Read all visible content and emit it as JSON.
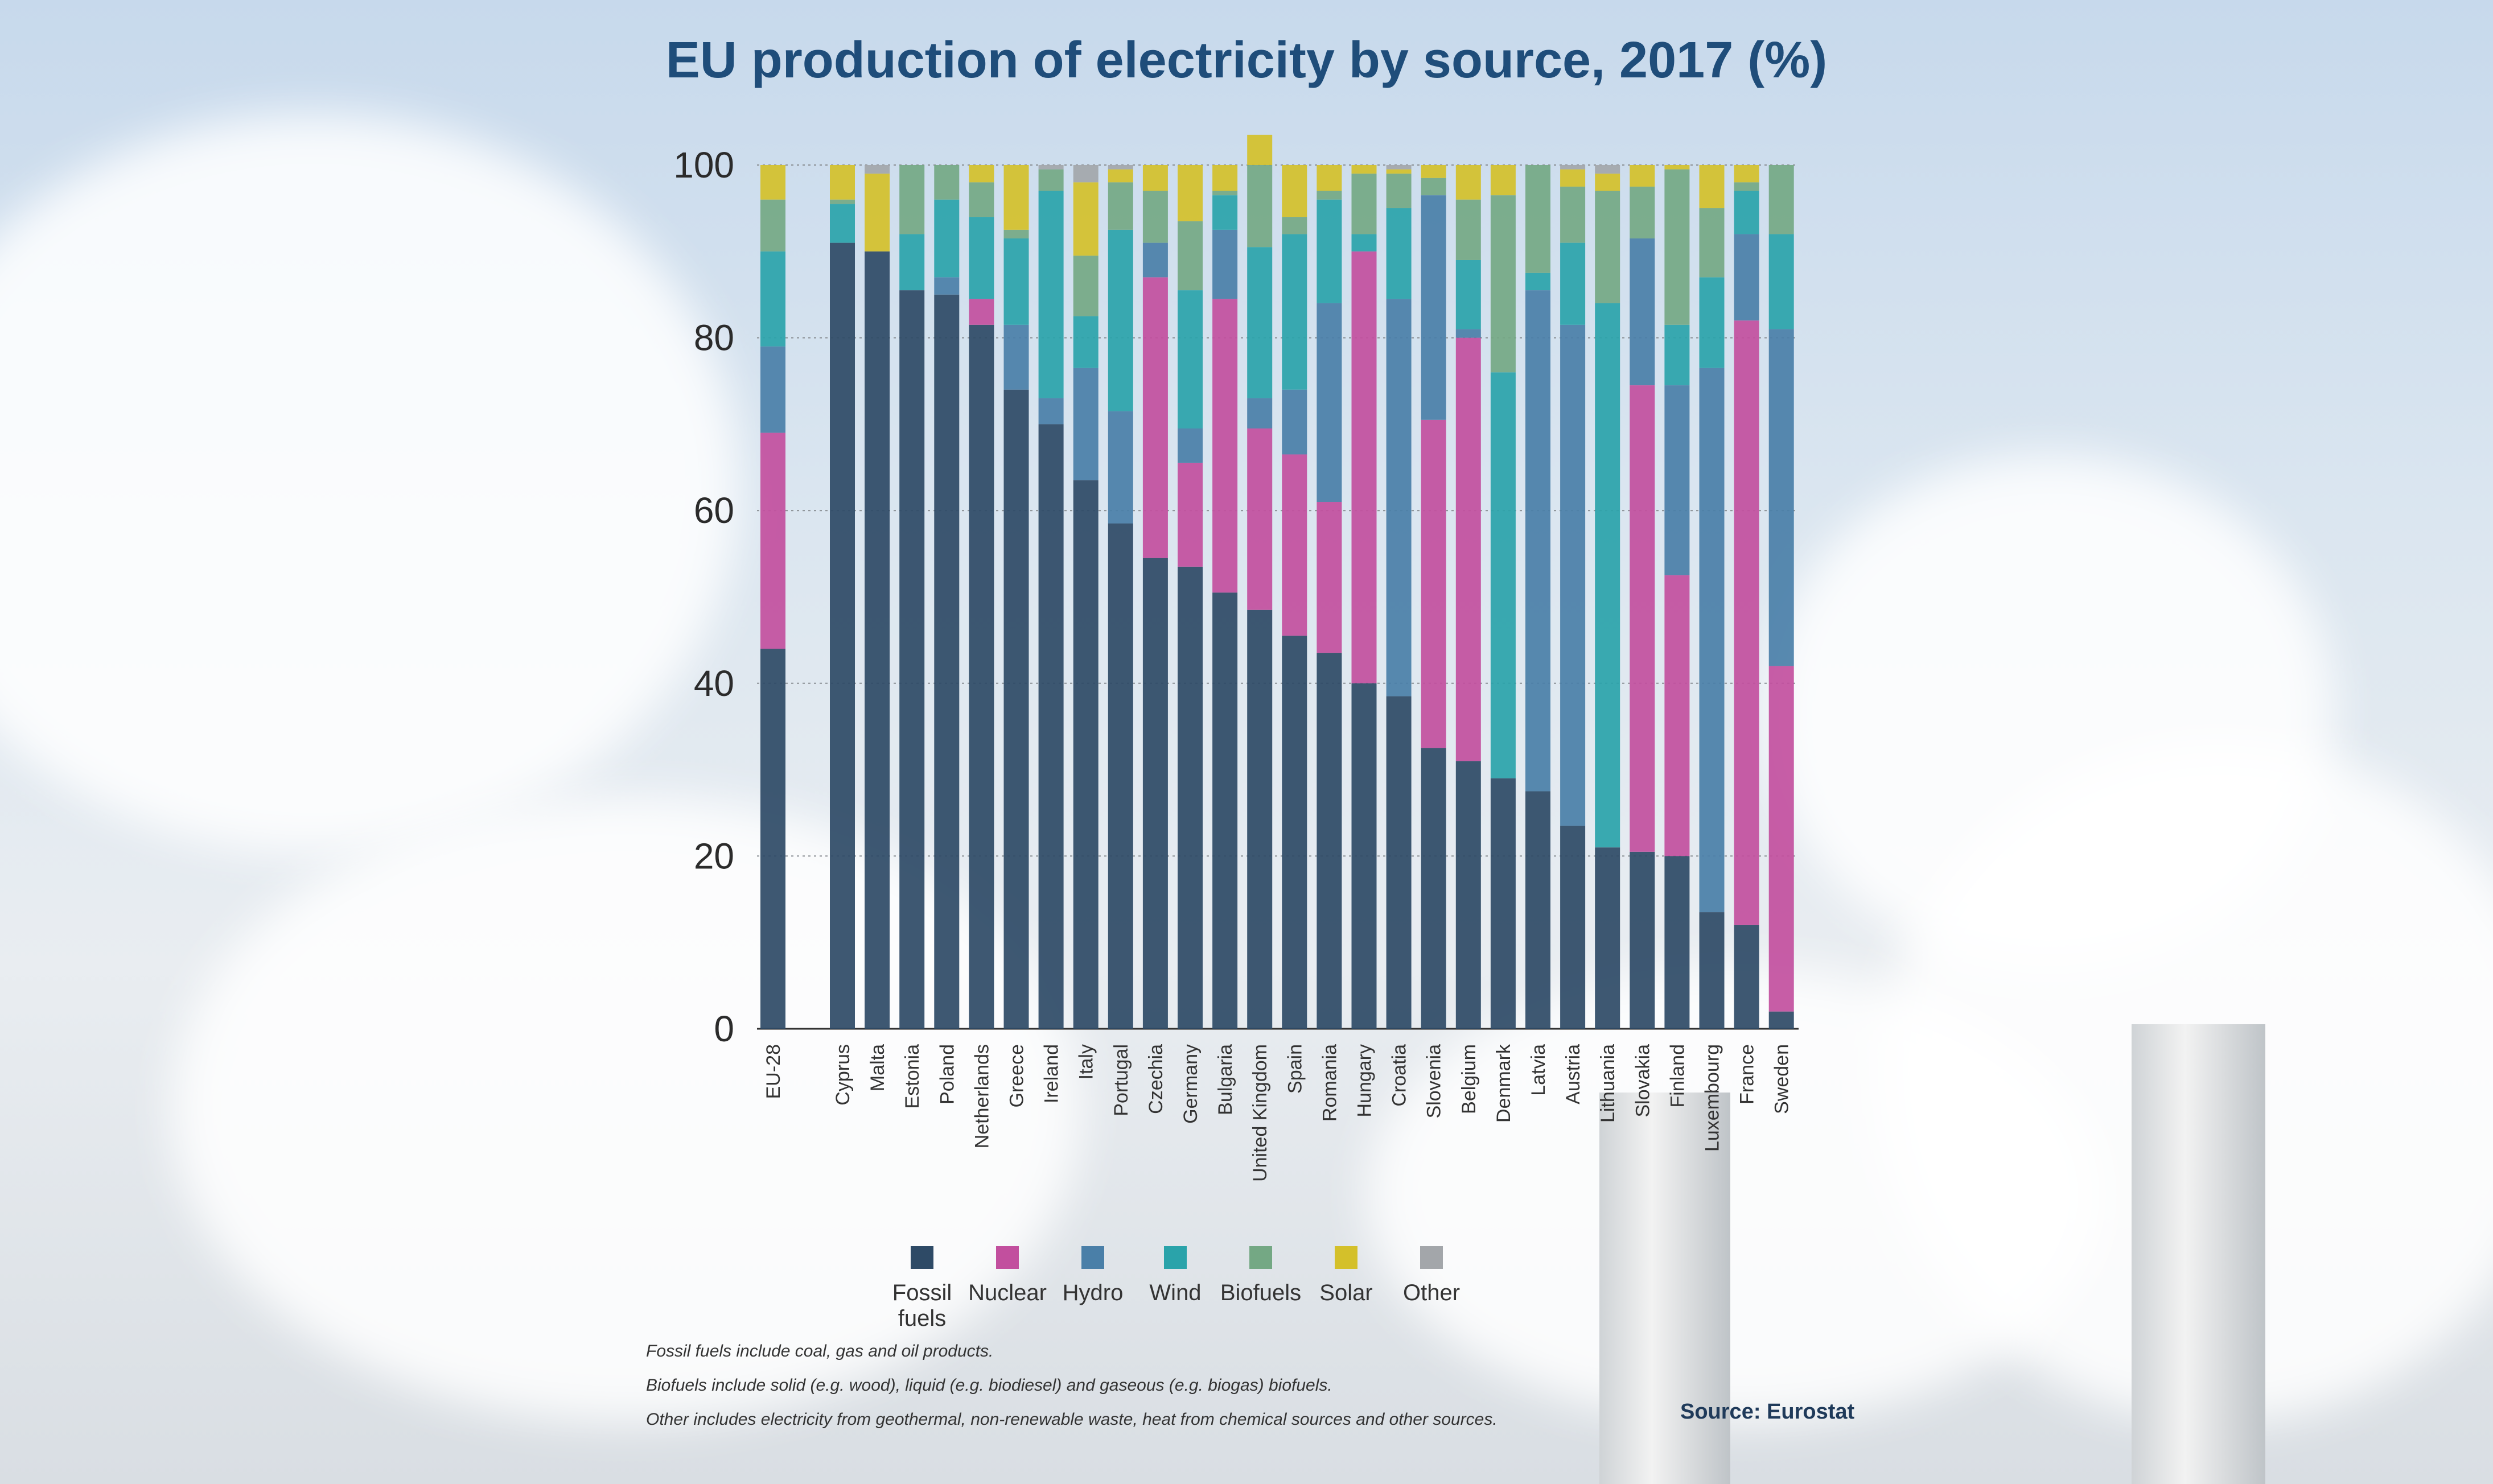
{
  "title": "EU production of electricity by source, 2017 (%)",
  "chart_data": {
    "type": "bar",
    "stacked": true,
    "ylim": [
      0,
      100
    ],
    "yticks": [
      0,
      20,
      40,
      60,
      80,
      100
    ],
    "categories": [
      "EU-28",
      "Cyprus",
      "Malta",
      "Estonia",
      "Poland",
      "Netherlands",
      "Greece",
      "Ireland",
      "Italy",
      "Portugal",
      "Czechia",
      "Germany",
      "Bulgaria",
      "United Kingdom",
      "Spain",
      "Romania",
      "Hungary",
      "Croatia",
      "Slovenia",
      "Belgium",
      "Denmark",
      "Latvia",
      "Austria",
      "Lithuania",
      "Slovakia",
      "Finland",
      "Luxembourg",
      "France",
      "Sweden"
    ],
    "series": [
      {
        "name": "Fossil fuels",
        "color": "#2e4a66",
        "values": [
          44,
          91,
          90,
          85.5,
          85,
          81.5,
          74,
          70,
          63.5,
          58.5,
          54.5,
          53.5,
          50.5,
          48.5,
          45.5,
          43.5,
          40,
          38.5,
          32.5,
          31,
          29,
          27.5,
          23.5,
          21,
          20.5,
          20,
          13.5,
          12,
          2
        ]
      },
      {
        "name": "Nuclear",
        "color": "#c24f9e",
        "values": [
          25,
          0,
          0,
          0,
          0,
          3,
          0,
          0,
          0,
          0,
          32.5,
          12,
          34,
          21,
          21,
          17.5,
          50,
          0,
          38,
          49,
          0,
          0,
          0,
          0,
          54,
          32.5,
          0,
          70,
          40
        ]
      },
      {
        "name": "Hydro",
        "color": "#4a7fa8",
        "values": [
          10,
          0,
          0,
          0,
          2,
          0,
          7.5,
          3,
          13,
          13,
          4,
          4,
          8,
          3.5,
          7.5,
          23,
          0,
          46,
          26,
          1,
          0,
          58,
          58,
          0,
          17,
          22,
          63,
          10,
          39
        ]
      },
      {
        "name": "Wind",
        "color": "#2aa3aa",
        "values": [
          11,
          4.5,
          0,
          6.5,
          9,
          9.5,
          10,
          24,
          6,
          21,
          0,
          16,
          4,
          17.5,
          18,
          12,
          2,
          10.5,
          0,
          8,
          47,
          2,
          9.5,
          63,
          0,
          7,
          10.5,
          5,
          11
        ]
      },
      {
        "name": "Biofuels",
        "color": "#74a884",
        "values": [
          6,
          0.5,
          0,
          8,
          4,
          4,
          1,
          2.5,
          7,
          5.5,
          6,
          8,
          0.5,
          9.5,
          2,
          1,
          7,
          4,
          2,
          7,
          20.5,
          12.5,
          6.5,
          13,
          6,
          18,
          8,
          1,
          8
        ]
      },
      {
        "name": "Solar",
        "color": "#d4c02a",
        "values": [
          4,
          4,
          9,
          0,
          0,
          2,
          7.5,
          0,
          8.5,
          1.5,
          3,
          6.5,
          3,
          3.5,
          6,
          3,
          1,
          0.5,
          1.5,
          4,
          3.5,
          0,
          2,
          2,
          2.5,
          0.5,
          5,
          2,
          0
        ]
      },
      {
        "name": "Other",
        "color": "#a3a6aa",
        "values": [
          0,
          0,
          1,
          0,
          0,
          0,
          0,
          0.5,
          2,
          0.5,
          0,
          0,
          0,
          0,
          0,
          0,
          0,
          0.5,
          0,
          0,
          0,
          0,
          0.5,
          1,
          0,
          0,
          0,
          0,
          0
        ]
      }
    ]
  },
  "notes": [
    "Fossil fuels include coal, gas and oil products.",
    "Biofuels include solid (e.g. wood), liquid (e.g. biodiesel) and gaseous (e.g. biogas) biofuels.",
    "Other includes electricity from geothermal, non-renewable waste, heat from chemical sources and other sources."
  ],
  "source": "Source: Eurostat"
}
